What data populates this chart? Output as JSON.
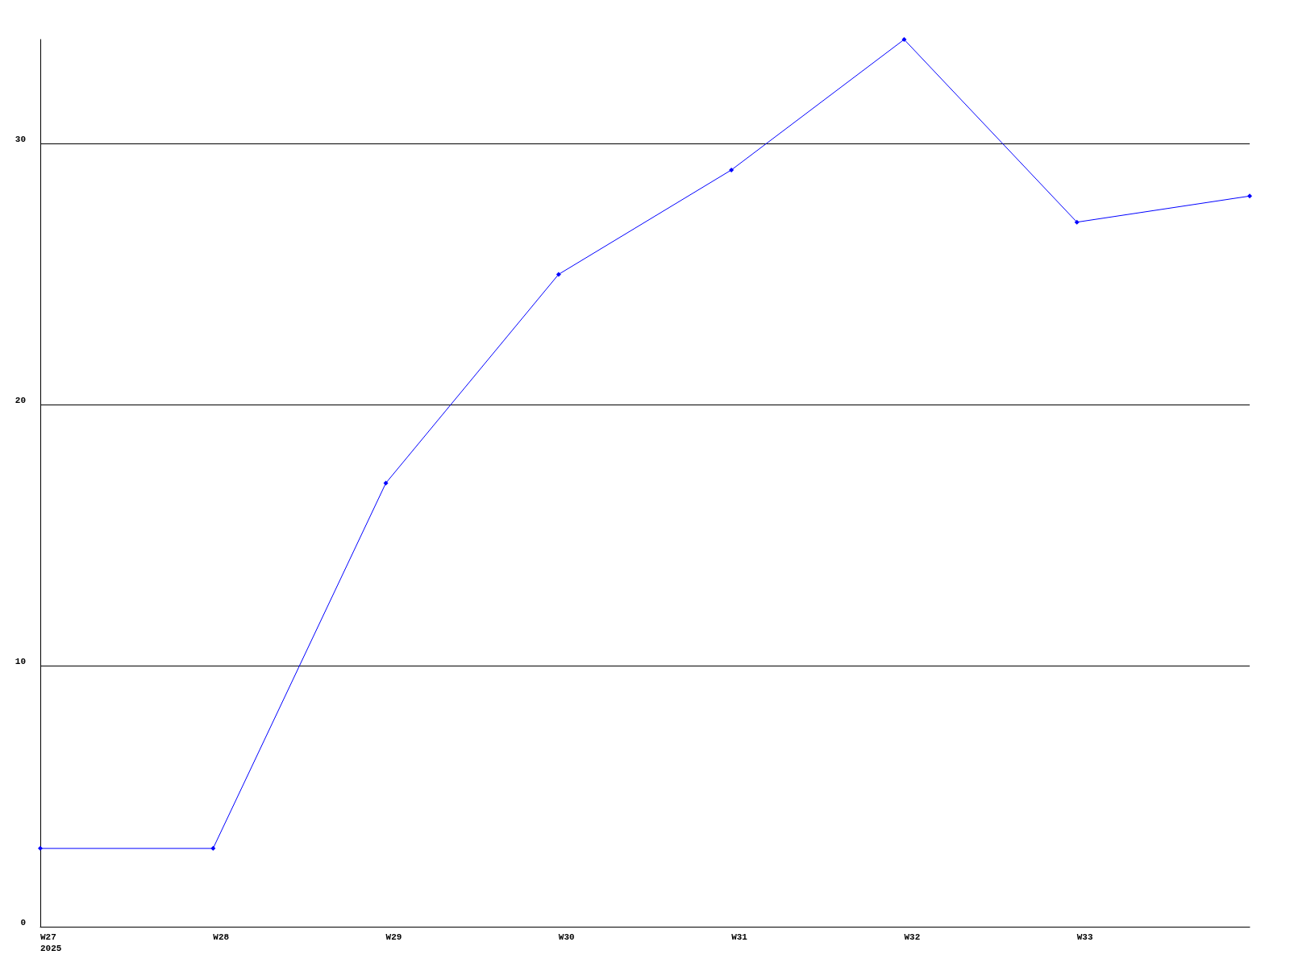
{
  "chart_data": {
    "type": "line",
    "categories": [
      "W27\n2025",
      "W28",
      "W29",
      "W30",
      "W31",
      "W32",
      "W33",
      null
    ],
    "series": [
      {
        "color": "#0000ff",
        "values": [
          3,
          3,
          17,
          25,
          29,
          34,
          27,
          28
        ]
      }
    ],
    "ylim": [
      0,
      34
    ],
    "yticks": [
      0,
      10,
      20,
      30
    ],
    "grid": "y",
    "marker": "diamond",
    "line_style": "solid"
  }
}
